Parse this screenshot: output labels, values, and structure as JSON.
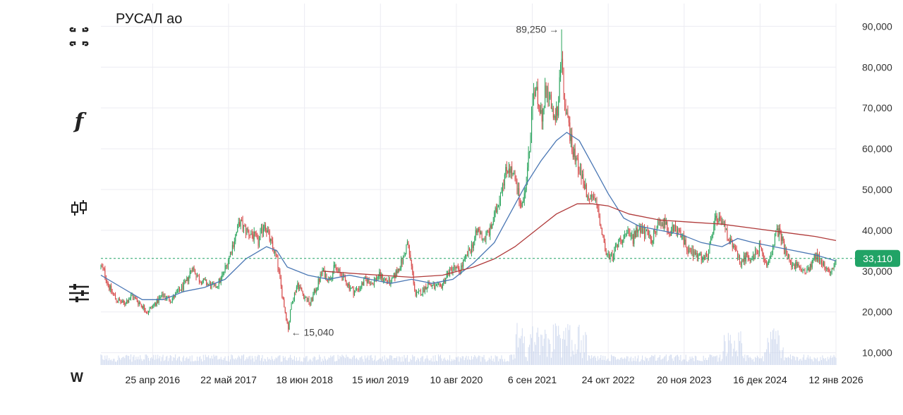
{
  "title": "РУСАЛ ао",
  "interval_label": "W",
  "toolbar": {
    "fullscreen_icon": "fullscreen-icon",
    "indicators_icon": "function-icon",
    "chart_type_icon": "candles-icon",
    "settings_icon": "sliders-icon"
  },
  "colors": {
    "up": "#27a35a",
    "down": "#d64545",
    "ma_fast": "#4a77b4",
    "ma_slow": "#b03a3a",
    "last_price": "#21a366",
    "grid": "#ececf2",
    "volume": "#c8d3ec"
  },
  "chart_data": {
    "type": "candlestick",
    "title": "РУСАЛ ао",
    "x_tick_labels": [
      "25 апр 2016",
      "22 май 2017",
      "18 июн 2018",
      "15 июл 2019",
      "10 авг 2020",
      "6 сен 2021",
      "24 окт 2022",
      "20 ноя 2023",
      "16 дек 2024",
      "12 янв 2026"
    ],
    "y_ticks": [
      10000,
      20000,
      30000,
      40000,
      50000,
      60000,
      70000,
      80000,
      90000
    ],
    "y_tick_labels": [
      "10,000",
      "20,000",
      "30,000",
      "40,000",
      "50,000",
      "60,000",
      "70,000",
      "80,000",
      "90,000"
    ],
    "ylim": [
      7000,
      93000
    ],
    "last_price": 33110,
    "last_price_label": "33,110",
    "max_annotation": {
      "label": "89,250 →",
      "value": 89250
    },
    "min_annotation": {
      "label": "← 15,040",
      "value": 15040
    },
    "price_path": [
      [
        0,
        31000
      ],
      [
        3,
        30000
      ],
      [
        8,
        26000
      ],
      [
        15,
        23000
      ],
      [
        22,
        22000
      ],
      [
        30,
        24000
      ],
      [
        38,
        22000
      ],
      [
        45,
        20000
      ],
      [
        52,
        22000
      ],
      [
        60,
        24000
      ],
      [
        68,
        23000
      ],
      [
        75,
        25000
      ],
      [
        82,
        27000
      ],
      [
        88,
        31000
      ],
      [
        95,
        28000
      ],
      [
        102,
        27000
      ],
      [
        110,
        26000
      ],
      [
        116,
        28000
      ],
      [
        122,
        32000
      ],
      [
        128,
        37000
      ],
      [
        134,
        42000
      ],
      [
        140,
        40000
      ],
      [
        146,
        39000
      ],
      [
        152,
        37000
      ],
      [
        158,
        42000
      ],
      [
        164,
        37000
      ],
      [
        170,
        33000
      ],
      [
        174,
        26000
      ],
      [
        178,
        20000
      ],
      [
        181,
        16000
      ],
      [
        184,
        22000
      ],
      [
        190,
        27000
      ],
      [
        196,
        24000
      ],
      [
        202,
        22000
      ],
      [
        208,
        26000
      ],
      [
        214,
        30000
      ],
      [
        220,
        28000
      ],
      [
        226,
        31000
      ],
      [
        232,
        29000
      ],
      [
        238,
        27000
      ],
      [
        244,
        25000
      ],
      [
        250,
        26000
      ],
      [
        256,
        28000
      ],
      [
        262,
        27000
      ],
      [
        268,
        29000
      ],
      [
        274,
        28000
      ],
      [
        280,
        27000
      ],
      [
        286,
        30000
      ],
      [
        292,
        33000
      ],
      [
        296,
        37000
      ],
      [
        300,
        31000
      ],
      [
        304,
        24000
      ],
      [
        310,
        25000
      ],
      [
        316,
        27000
      ],
      [
        322,
        26000
      ],
      [
        328,
        26000
      ],
      [
        334,
        29000
      ],
      [
        340,
        31000
      ],
      [
        346,
        30000
      ],
      [
        352,
        33000
      ],
      [
        358,
        36000
      ],
      [
        364,
        40000
      ],
      [
        370,
        38000
      ],
      [
        376,
        40000
      ],
      [
        382,
        45000
      ],
      [
        388,
        52000
      ],
      [
        394,
        56000
      ],
      [
        400,
        52000
      ],
      [
        406,
        47000
      ],
      [
        410,
        50000
      ],
      [
        414,
        60000
      ],
      [
        418,
        75000
      ],
      [
        422,
        72000
      ],
      [
        426,
        69000
      ],
      [
        430,
        75000
      ],
      [
        434,
        73000
      ],
      [
        438,
        66000
      ],
      [
        442,
        72000
      ],
      [
        445,
        82000
      ],
      [
        448,
        70000
      ],
      [
        452,
        65000
      ],
      [
        456,
        60000
      ],
      [
        460,
        57000
      ],
      [
        464,
        53000
      ],
      [
        468,
        50000
      ],
      [
        472,
        47000
      ],
      [
        476,
        48000
      ],
      [
        480,
        45000
      ],
      [
        484,
        40000
      ],
      [
        488,
        34000
      ],
      [
        492,
        33000
      ],
      [
        496,
        35000
      ],
      [
        502,
        38000
      ],
      [
        508,
        39000
      ],
      [
        514,
        38000
      ],
      [
        520,
        41000
      ],
      [
        526,
        39000
      ],
      [
        532,
        38000
      ],
      [
        538,
        41000
      ],
      [
        544,
        42000
      ],
      [
        550,
        40000
      ],
      [
        556,
        40000
      ],
      [
        562,
        38000
      ],
      [
        568,
        35000
      ],
      [
        574,
        34000
      ],
      [
        580,
        33000
      ],
      [
        586,
        33000
      ],
      [
        590,
        39000
      ],
      [
        594,
        43000
      ],
      [
        598,
        42000
      ],
      [
        602,
        41000
      ],
      [
        606,
        38000
      ],
      [
        612,
        35000
      ],
      [
        618,
        32000
      ],
      [
        624,
        34000
      ],
      [
        630,
        33000
      ],
      [
        636,
        36000
      ],
      [
        642,
        31000
      ],
      [
        648,
        35000
      ],
      [
        652,
        39000
      ],
      [
        656,
        40000
      ],
      [
        660,
        35000
      ],
      [
        666,
        32000
      ],
      [
        672,
        31000
      ],
      [
        678,
        30000
      ],
      [
        684,
        31000
      ],
      [
        690,
        34000
      ],
      [
        696,
        32000
      ],
      [
        702,
        30000
      ],
      [
        706,
        31000
      ],
      [
        710,
        33110
      ]
    ],
    "series": [
      {
        "name": "",
        "type": "moving-average",
        "color": "#4a77b4",
        "points": [
          [
            0,
            29000
          ],
          [
            20,
            26000
          ],
          [
            40,
            23000
          ],
          [
            60,
            23000
          ],
          [
            80,
            25000
          ],
          [
            100,
            26000
          ],
          [
            120,
            28000
          ],
          [
            140,
            33000
          ],
          [
            160,
            36000
          ],
          [
            170,
            35000
          ],
          [
            180,
            31000
          ],
          [
            200,
            29000
          ],
          [
            220,
            28000
          ],
          [
            240,
            29000
          ],
          [
            260,
            28000
          ],
          [
            280,
            27000
          ],
          [
            300,
            28000
          ],
          [
            320,
            27000
          ],
          [
            340,
            28000
          ],
          [
            360,
            32000
          ],
          [
            380,
            37000
          ],
          [
            395,
            44000
          ],
          [
            410,
            51000
          ],
          [
            425,
            57000
          ],
          [
            440,
            62000
          ],
          [
            450,
            64000
          ],
          [
            462,
            62000
          ],
          [
            475,
            56000
          ],
          [
            490,
            49000
          ],
          [
            505,
            43000
          ],
          [
            520,
            41000
          ],
          [
            540,
            40000
          ],
          [
            560,
            39000
          ],
          [
            580,
            37000
          ],
          [
            600,
            36000
          ],
          [
            615,
            38000
          ],
          [
            630,
            37000
          ],
          [
            650,
            36000
          ],
          [
            670,
            35000
          ],
          [
            690,
            34000
          ],
          [
            710,
            32500
          ]
        ]
      },
      {
        "name": "",
        "type": "moving-average",
        "color": "#b03a3a",
        "points": [
          [
            214,
            30000
          ],
          [
            240,
            29500
          ],
          [
            270,
            29000
          ],
          [
            300,
            28500
          ],
          [
            330,
            29000
          ],
          [
            360,
            31000
          ],
          [
            380,
            33000
          ],
          [
            400,
            36000
          ],
          [
            420,
            40000
          ],
          [
            440,
            44000
          ],
          [
            460,
            46500
          ],
          [
            475,
            46500
          ],
          [
            490,
            46000
          ],
          [
            510,
            44000
          ],
          [
            540,
            42500
          ],
          [
            570,
            42000
          ],
          [
            600,
            41500
          ],
          [
            630,
            40500
          ],
          [
            660,
            39500
          ],
          [
            690,
            38500
          ],
          [
            710,
            37500
          ]
        ]
      }
    ]
  }
}
